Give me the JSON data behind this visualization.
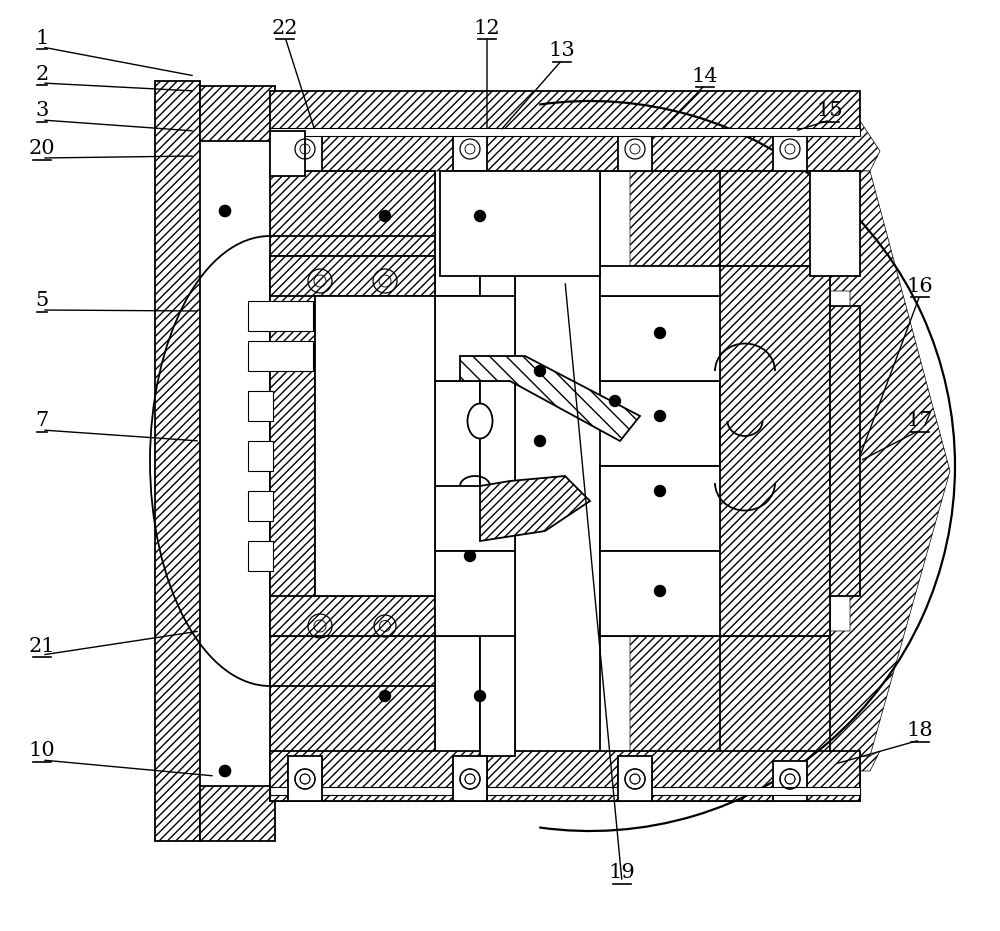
{
  "figsize": [
    10.0,
    9.31
  ],
  "dpi": 100,
  "bg_color": "#ffffff",
  "lc": "#000000",
  "labels": [
    [
      "1",
      45,
      893
    ],
    [
      "2",
      45,
      857
    ],
    [
      "3",
      45,
      820
    ],
    [
      "20",
      45,
      782
    ],
    [
      "5",
      45,
      630
    ],
    [
      "7",
      45,
      510
    ],
    [
      "21",
      45,
      285
    ],
    [
      "10",
      45,
      180
    ],
    [
      "22",
      283,
      900
    ],
    [
      "12",
      483,
      900
    ],
    [
      "13",
      560,
      878
    ],
    [
      "14",
      700,
      853
    ],
    [
      "15",
      828,
      820
    ],
    [
      "16",
      912,
      645
    ],
    [
      "17",
      912,
      510
    ],
    [
      "18",
      912,
      200
    ],
    [
      "19",
      620,
      60
    ]
  ],
  "leader_lines": [
    [
      "1",
      45,
      893,
      195,
      862
    ],
    [
      "2",
      45,
      857,
      195,
      840
    ],
    [
      "3",
      45,
      820,
      195,
      800
    ],
    [
      "20",
      45,
      782,
      195,
      775
    ],
    [
      "5",
      45,
      630,
      195,
      620
    ],
    [
      "7",
      45,
      510,
      200,
      490
    ],
    [
      "21",
      45,
      285,
      195,
      305
    ],
    [
      "10",
      45,
      180,
      210,
      160
    ],
    [
      "22",
      283,
      900,
      310,
      800
    ],
    [
      "12",
      483,
      900,
      483,
      760
    ],
    [
      "13",
      560,
      878,
      490,
      760
    ],
    [
      "14",
      700,
      853,
      650,
      770
    ],
    [
      "15",
      828,
      820,
      780,
      760
    ],
    [
      "16",
      912,
      645,
      860,
      470
    ],
    [
      "17",
      912,
      510,
      860,
      470
    ],
    [
      "18",
      912,
      200,
      830,
      167
    ],
    [
      "19",
      620,
      60,
      560,
      650
    ]
  ]
}
